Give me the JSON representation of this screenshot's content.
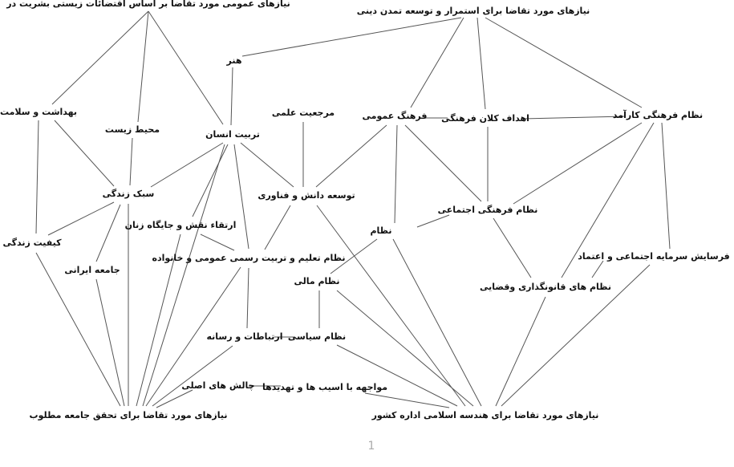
{
  "nodes": [
    {
      "label": "نیازهای عمومی مورد تقاضا بر اساس اقتضائات زیستی بشریت در"
    },
    {
      "label": "نیازهای مورد تقاضا برای استمرار و توسعه تمدن دینی"
    },
    {
      "label": "هنر"
    },
    {
      "label": "بهداشت و سلامت"
    },
    {
      "label": "مرجعیت علمی"
    },
    {
      "label": "فرهنگ عمومی"
    },
    {
      "label": "اهداف کلان فرهنگی"
    },
    {
      "label": "نظام فرهنگی کارآمد"
    },
    {
      "label": "محیط زیست"
    },
    {
      "label": "تربیت انسان"
    },
    {
      "label": "سبک زندگی"
    },
    {
      "label": "توسعه دانش و فناوری"
    },
    {
      "label": "نظام فرهنگی اجتماعی"
    },
    {
      "label": "ارتقاء نقش و جایگاه زنان"
    },
    {
      "label": "نظام"
    },
    {
      "label": "کیفیت زندگی"
    },
    {
      "label": "فرسایش سرمایه اجتماعی و اعتماد"
    },
    {
      "label": "نظام تعلیم و تربیت رسمی عمومی و خانواده"
    },
    {
      "label": "جامعه ایرانی"
    },
    {
      "label": "نظام مالی"
    },
    {
      "label": "نظام های قانونگذاری وقضایی"
    },
    {
      "label": "نظام سیاسی"
    },
    {
      "label": "ارتباطات و رسانه"
    },
    {
      "label": "مواجهه با اسیب ها و تهدیدها"
    },
    {
      "label": "چالش های اصلی"
    },
    {
      "label": "نیازهای مورد تقاضا برای تحقق جامعه مطلوب"
    },
    {
      "label": "نیازهای مورد تقاضا برای هندسه اسلامی اداره کشور"
    }
  ],
  "page_number": "1"
}
